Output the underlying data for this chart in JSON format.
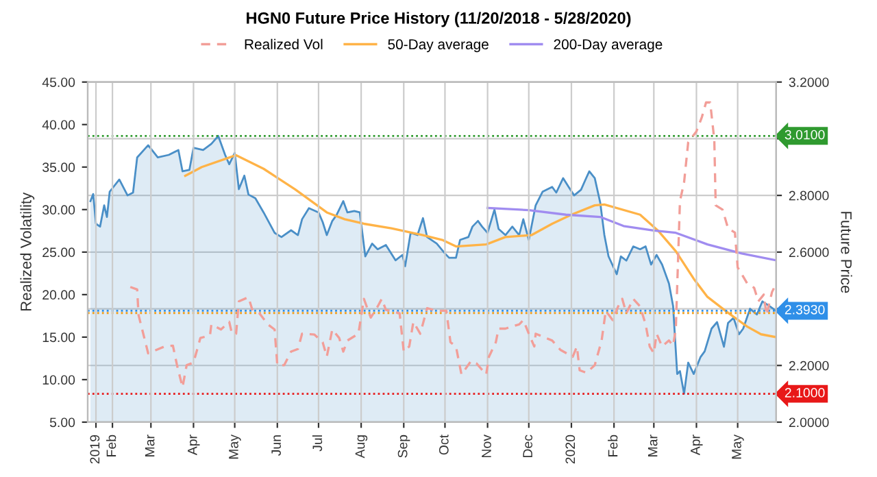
{
  "chart_data": {
    "type": "line",
    "title": "HGN0 Future Price History (11/20/2018 - 5/28/2020)",
    "ylabel": "Realized Volatility",
    "y2label": "Future Price",
    "xlim": [
      "2019-01-14",
      "2020-05-29"
    ],
    "xticks": [
      {
        "value": "2019-01-20",
        "label": "2019"
      },
      {
        "value": "2019-02-01",
        "label": "Feb"
      },
      {
        "value": "2019-03-01",
        "label": "Mar"
      },
      {
        "value": "2019-04-01",
        "label": "Apr"
      },
      {
        "value": "2019-05-01",
        "label": "May"
      },
      {
        "value": "2019-06-01",
        "label": "Jun"
      },
      {
        "value": "2019-07-01",
        "label": "Jul"
      },
      {
        "value": "2019-08-01",
        "label": "Aug"
      },
      {
        "value": "2019-09-01",
        "label": "Sep"
      },
      {
        "value": "2019-10-01",
        "label": "Oct"
      },
      {
        "value": "2019-11-01",
        "label": "Nov"
      },
      {
        "value": "2019-12-01",
        "label": "Dec"
      },
      {
        "value": "2020-01-01",
        "label": "2020"
      },
      {
        "value": "2020-02-01",
        "label": "Feb"
      },
      {
        "value": "2020-03-01",
        "label": "Mar"
      },
      {
        "value": "2020-04-01",
        "label": "Apr"
      },
      {
        "value": "2020-05-01",
        "label": "May"
      }
    ],
    "ylim": [
      5,
      45
    ],
    "yticks": [
      {
        "value": 5,
        "label": "5.00"
      },
      {
        "value": 10,
        "label": "10.00"
      },
      {
        "value": 15,
        "label": "15.00"
      },
      {
        "value": 20,
        "label": "20.00"
      },
      {
        "value": 25,
        "label": "25.00"
      },
      {
        "value": 30,
        "label": "30.00"
      },
      {
        "value": 35,
        "label": "35.00"
      },
      {
        "value": 40,
        "label": "40.00"
      },
      {
        "value": 45,
        "label": "45.00"
      }
    ],
    "y2lim": [
      2.0,
      3.2
    ],
    "y2ticks": [
      {
        "value": 2.0,
        "label": "2.0000"
      },
      {
        "value": 2.2,
        "label": "2.2000"
      },
      {
        "value": 2.4,
        "label": null
      },
      {
        "value": 2.6,
        "label": "2.6000"
      },
      {
        "value": 2.8,
        "label": "2.8000"
      },
      {
        "value": 3.0,
        "label": null
      },
      {
        "value": 3.2,
        "label": "3.2000"
      }
    ],
    "grid": true,
    "legend": "top",
    "marker": "none",
    "series": [
      {
        "type": "area",
        "axis": "y2",
        "color": "#4a8fc7",
        "line_style": "solid",
        "x": [
          "2019-01-16",
          "2019-01-18",
          "2019-01-20",
          "2019-01-23",
          "2019-01-26",
          "2019-01-28",
          "2019-01-30",
          "2019-02-06",
          "2019-02-12",
          "2019-02-16",
          "2019-02-19",
          "2019-02-27",
          "2019-03-06",
          "2019-03-14",
          "2019-03-21",
          "2019-03-24",
          "2019-03-29",
          "2019-04-01",
          "2019-04-08",
          "2019-04-14",
          "2019-04-19",
          "2019-04-24",
          "2019-04-27",
          "2019-05-01",
          "2019-05-04",
          "2019-05-08",
          "2019-05-11",
          "2019-05-16",
          "2019-05-22",
          "2019-05-30",
          "2019-06-04",
          "2019-06-11",
          "2019-06-16",
          "2019-06-19",
          "2019-06-24",
          "2019-07-01",
          "2019-07-04",
          "2019-07-07",
          "2019-07-11",
          "2019-07-14",
          "2019-07-19",
          "2019-07-22",
          "2019-07-27",
          "2019-07-31",
          "2019-08-04",
          "2019-08-09",
          "2019-08-13",
          "2019-08-19",
          "2019-08-26",
          "2019-08-31",
          "2019-09-02",
          "2019-09-06",
          "2019-09-11",
          "2019-09-15",
          "2019-09-18",
          "2019-09-25",
          "2019-10-01",
          "2019-10-04",
          "2019-10-09",
          "2019-10-12",
          "2019-10-18",
          "2019-10-21",
          "2019-10-25",
          "2019-10-28",
          "2019-11-01",
          "2019-11-06",
          "2019-11-09",
          "2019-11-14",
          "2019-11-19",
          "2019-11-24",
          "2019-11-27",
          "2019-12-01",
          "2019-12-06",
          "2019-12-11",
          "2019-12-18",
          "2019-12-21",
          "2019-12-26",
          "2019-12-30",
          "2020-01-03",
          "2020-01-08",
          "2020-01-11",
          "2020-01-14",
          "2020-01-18",
          "2020-01-22",
          "2020-01-25",
          "2020-01-28",
          "2020-02-03",
          "2020-02-06",
          "2020-02-10",
          "2020-02-15",
          "2020-02-20",
          "2020-02-24",
          "2020-02-28",
          "2020-03-03",
          "2020-03-07",
          "2020-03-12",
          "2020-03-15",
          "2020-03-18",
          "2020-03-20",
          "2020-03-23",
          "2020-03-26",
          "2020-03-30",
          "2020-04-04",
          "2020-04-07",
          "2020-04-12",
          "2020-04-16",
          "2020-04-21",
          "2020-04-24",
          "2020-04-28",
          "2020-05-02",
          "2020-05-05",
          "2020-05-10",
          "2020-05-15",
          "2020-05-19",
          "2020-05-24",
          "2020-05-29"
        ],
        "values": [
          2.78,
          2.805,
          2.7,
          2.69,
          2.765,
          2.724,
          2.813,
          2.856,
          2.8,
          2.81,
          2.934,
          2.977,
          2.934,
          2.943,
          2.96,
          2.885,
          2.89,
          2.968,
          2.96,
          2.982,
          3.01,
          2.943,
          2.91,
          2.95,
          2.822,
          2.87,
          2.803,
          2.79,
          2.74,
          2.668,
          2.653,
          2.677,
          2.66,
          2.716,
          2.755,
          2.74,
          2.706,
          2.66,
          2.71,
          2.73,
          2.78,
          2.74,
          2.745,
          2.74,
          2.585,
          2.63,
          2.61,
          2.625,
          2.571,
          2.59,
          2.55,
          2.668,
          2.66,
          2.72,
          2.653,
          2.63,
          2.595,
          2.58,
          2.58,
          2.643,
          2.653,
          2.69,
          2.71,
          2.69,
          2.668,
          2.75,
          2.682,
          2.66,
          2.69,
          2.66,
          2.716,
          2.643,
          2.765,
          2.813,
          2.83,
          2.81,
          2.861,
          2.83,
          2.8,
          2.82,
          2.853,
          2.885,
          2.861,
          2.774,
          2.66,
          2.585,
          2.522,
          2.585,
          2.57,
          2.62,
          2.61,
          2.62,
          2.556,
          2.59,
          2.556,
          2.489,
          2.41,
          2.17,
          2.18,
          2.1,
          2.21,
          2.17,
          2.23,
          2.25,
          2.33,
          2.353,
          2.266,
          2.35,
          2.368,
          2.31,
          2.33,
          2.4,
          2.38,
          2.426,
          2.41,
          2.393
        ]
      },
      {
        "axis": "y",
        "name": "Realized Vol",
        "color": "#f29e98",
        "line_style": "dashed",
        "x": [
          "2019-02-14",
          "2019-02-19",
          "2019-02-20",
          "2019-02-27",
          "2019-03-11",
          "2019-03-17",
          "2019-03-20",
          "2019-03-24",
          "2019-03-27",
          "2019-04-01",
          "2019-04-06",
          "2019-04-13",
          "2019-04-14",
          "2019-04-21",
          "2019-04-27",
          "2019-04-29",
          "2019-05-02",
          "2019-05-04",
          "2019-05-11",
          "2019-05-14",
          "2019-05-19",
          "2019-05-25",
          "2019-05-30",
          "2019-06-01",
          "2019-06-06",
          "2019-06-11",
          "2019-06-16",
          "2019-06-19",
          "2019-06-28",
          "2019-07-04",
          "2019-07-07",
          "2019-07-11",
          "2019-07-16",
          "2019-07-19",
          "2019-07-22",
          "2019-07-30",
          "2019-08-03",
          "2019-08-08",
          "2019-08-13",
          "2019-08-16",
          "2019-08-19",
          "2019-08-29",
          "2019-09-01",
          "2019-09-05",
          "2019-09-08",
          "2019-09-13",
          "2019-09-18",
          "2019-09-25",
          "2019-10-02",
          "2019-10-05",
          "2019-10-09",
          "2019-10-13",
          "2019-10-20",
          "2019-10-24",
          "2019-10-31",
          "2019-11-02",
          "2019-11-07",
          "2019-11-09",
          "2019-11-14",
          "2019-11-24",
          "2019-11-27",
          "2019-12-01",
          "2019-12-05",
          "2019-12-06",
          "2019-12-18",
          "2019-12-24",
          "2020-01-02",
          "2020-01-05",
          "2020-01-07",
          "2020-01-12",
          "2020-01-18",
          "2020-01-23",
          "2020-01-26",
          "2020-01-31",
          "2020-02-04",
          "2020-02-07",
          "2020-02-10",
          "2020-02-15",
          "2020-02-20",
          "2020-02-24",
          "2020-02-27",
          "2020-03-01",
          "2020-03-03",
          "2020-03-07",
          "2020-03-12",
          "2020-03-15",
          "2020-03-17",
          "2020-03-20",
          "2020-03-23",
          "2020-03-26",
          "2020-04-01",
          "2020-04-05",
          "2020-04-08",
          "2020-04-11",
          "2020-04-14",
          "2020-04-15",
          "2020-04-20",
          "2020-04-24",
          "2020-04-29",
          "2020-05-01",
          "2020-05-04",
          "2020-05-08",
          "2020-05-13",
          "2020-05-16",
          "2020-05-20",
          "2020-05-22",
          "2020-05-26",
          "2020-05-29"
        ],
        "values": [
          20.9,
          20.6,
          17.6,
          13.1,
          13.9,
          14.0,
          11.7,
          9.1,
          11.7,
          12.0,
          14.9,
          15.2,
          16.5,
          15.9,
          16.8,
          15.4,
          15.4,
          19.2,
          19.7,
          18.1,
          17.8,
          16.5,
          15.9,
          11.7,
          11.7,
          13.3,
          13.6,
          15.4,
          15.3,
          14.4,
          12.7,
          15.9,
          14.9,
          13.3,
          14.6,
          15.4,
          19.5,
          17.3,
          18.6,
          19.5,
          18.2,
          17.8,
          13.3,
          13.9,
          16.8,
          15.4,
          18.4,
          18.1,
          18.1,
          14.4,
          13.9,
          10.6,
          12.2,
          11.9,
          10.6,
          12.7,
          14.4,
          16.0,
          16.0,
          16.5,
          17.0,
          15.4,
          13.9,
          15.4,
          14.6,
          13.5,
          12.7,
          13.9,
          11.1,
          10.8,
          11.7,
          14.6,
          18.1,
          17.0,
          18.6,
          19.5,
          17.8,
          19.5,
          18.6,
          16.5,
          13.9,
          13.1,
          15.4,
          13.9,
          14.6,
          14.0,
          16.0,
          31.0,
          33.2,
          37.9,
          39.2,
          40.9,
          42.6,
          42.6,
          38.2,
          30.5,
          30.0,
          27.8,
          27.3,
          23.2,
          22.4,
          21.3,
          20.8,
          19.2,
          20.0,
          17.6,
          20.3,
          21.3
        ]
      },
      {
        "axis": "y2",
        "name": "50-Day average",
        "color": "#ffb347",
        "line_style": "solid",
        "x": [
          "2019-03-26",
          "2019-04-07",
          "2019-05-02",
          "2019-05-22",
          "2019-06-14",
          "2019-07-07",
          "2019-07-20",
          "2019-08-03",
          "2019-08-23",
          "2019-09-15",
          "2019-09-29",
          "2019-10-09",
          "2019-10-31",
          "2019-11-14",
          "2019-12-03",
          "2019-12-18",
          "2020-01-01",
          "2020-01-18",
          "2020-01-25",
          "2020-02-20",
          "2020-03-04",
          "2020-03-17",
          "2020-03-30",
          "2020-04-09",
          "2020-04-24",
          "2020-05-08",
          "2020-05-18",
          "2020-05-29"
        ],
        "values": [
          2.869,
          2.9,
          2.942,
          2.894,
          2.821,
          2.74,
          2.716,
          2.7,
          2.684,
          2.66,
          2.643,
          2.62,
          2.627,
          2.653,
          2.66,
          2.7,
          2.732,
          2.765,
          2.768,
          2.732,
          2.676,
          2.603,
          2.506,
          2.442,
          2.386,
          2.337,
          2.31,
          2.3
        ]
      },
      {
        "axis": "y2",
        "name": "200-Day average",
        "color": "#a08cf0",
        "line_style": "solid",
        "x": [
          "2019-11-01",
          "2019-12-01",
          "2019-12-28",
          "2020-01-22",
          "2020-02-08",
          "2020-03-01",
          "2020-03-17",
          "2020-04-09",
          "2020-05-04",
          "2020-05-29"
        ],
        "values": [
          2.756,
          2.748,
          2.732,
          2.724,
          2.692,
          2.676,
          2.668,
          2.627,
          2.595,
          2.571
        ]
      }
    ],
    "ref_lines": [
      {
        "axis": "y2",
        "value": 3.01,
        "label": "3.0100",
        "color": "#2f9a2f",
        "line_style": "dotted"
      },
      {
        "axis": "y2",
        "value": 2.393,
        "label": "2.3930",
        "color": "#2f8fe8",
        "line_style": "dotted"
      },
      {
        "axis": "y2",
        "value": 2.385,
        "color": "#f0a020",
        "line_style": "dotted"
      },
      {
        "axis": "y2",
        "value": 2.1,
        "label": "2.1000",
        "color": "#e81818",
        "line_style": "dotted"
      }
    ]
  }
}
